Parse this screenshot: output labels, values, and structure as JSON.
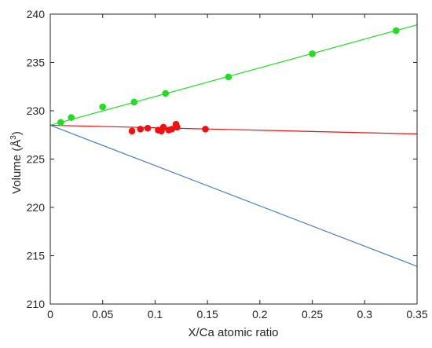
{
  "chart_data": {
    "type": "scatter",
    "xlabel": "X/Ca atomic ratio",
    "ylabel_main": "Volume (Å",
    "ylabel_sup": "3",
    "ylabel_close": ")",
    "xlim": [
      0,
      0.35
    ],
    "ylim": [
      210,
      240
    ],
    "x_ticks": [
      {
        "value": 0,
        "label": "0"
      },
      {
        "value": 0.05,
        "label": "0.05"
      },
      {
        "value": 0.1,
        "label": "0.1"
      },
      {
        "value": 0.15,
        "label": "0.15"
      },
      {
        "value": 0.2,
        "label": "0.2"
      },
      {
        "value": 0.25,
        "label": "0.25"
      },
      {
        "value": 0.3,
        "label": "0.3"
      },
      {
        "value": 0.35,
        "label": "0.35"
      }
    ],
    "y_ticks": [
      {
        "value": 210,
        "label": "210"
      },
      {
        "value": 215,
        "label": "215"
      },
      {
        "value": 220,
        "label": "220"
      },
      {
        "value": 225,
        "label": "225"
      },
      {
        "value": 230,
        "label": "230"
      },
      {
        "value": 235,
        "label": "235"
      },
      {
        "value": 240,
        "label": "240"
      }
    ],
    "grid": false,
    "legend": "none",
    "series": [
      {
        "color": "#22dd22",
        "points": [
          [
            0.01,
            228.8
          ],
          [
            0.02,
            229.3
          ],
          [
            0.05,
            230.4
          ],
          [
            0.08,
            230.9
          ],
          [
            0.11,
            231.8
          ],
          [
            0.17,
            233.5
          ],
          [
            0.25,
            235.9
          ],
          [
            0.33,
            238.3
          ]
        ],
        "fit": [
          [
            0,
            228.5
          ],
          [
            0.35,
            238.9
          ]
        ]
      },
      {
        "color": "#ee1111",
        "points": [
          [
            0.078,
            227.9
          ],
          [
            0.086,
            228.1
          ],
          [
            0.093,
            228.2
          ],
          [
            0.103,
            228.0
          ],
          [
            0.106,
            227.9
          ],
          [
            0.108,
            228.3
          ],
          [
            0.113,
            228.0
          ],
          [
            0.116,
            228.1
          ],
          [
            0.12,
            228.6
          ],
          [
            0.121,
            228.3
          ],
          [
            0.148,
            228.1
          ]
        ],
        "fit": [
          [
            0,
            228.5
          ],
          [
            0.35,
            227.6
          ]
        ]
      },
      {
        "color": "#4a82c4",
        "points": [],
        "fit": [
          [
            0,
            228.5
          ],
          [
            0.35,
            213.9
          ]
        ]
      }
    ]
  }
}
